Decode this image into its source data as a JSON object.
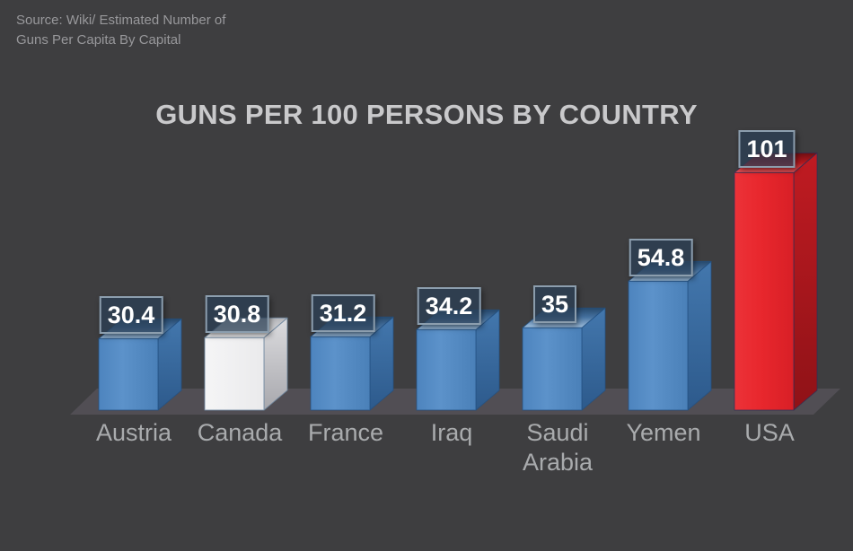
{
  "source_note": "Source: Wiki/ Estimated Number of\nGuns Per Capita By Capital",
  "chart_data": {
    "type": "bar",
    "projection": "3d",
    "title": "GUNS PER 100 PERSONS BY COUNTRY",
    "xlabel": "",
    "ylabel": "",
    "categories": [
      "Austria",
      "Canada",
      "France",
      "Iraq",
      "Saudi Arabia",
      "Yemen",
      "USA"
    ],
    "values": [
      30.4,
      30.8,
      31.2,
      34.2,
      35,
      54.8,
      101
    ],
    "value_labels": [
      "30.4",
      "30.8",
      "31.2",
      "34.2",
      "35",
      "54.8",
      "101"
    ],
    "bar_palette": [
      "blue",
      "white",
      "blue",
      "blue",
      "blue",
      "blue",
      "red"
    ],
    "bar_colors": [
      "#5189c2",
      "#f1f1f2",
      "#5189c2",
      "#5189c2",
      "#5189c2",
      "#5189c2",
      "#e8282e"
    ],
    "ylim": [
      0,
      101
    ],
    "axes_visible": false,
    "grid": false,
    "legend": false
  },
  "colors": {
    "background": "#3e3e40",
    "floor": "#514e54",
    "accent_blue": "#5189c2",
    "highlight_white": "#f1f1f2",
    "highlight_red": "#e8282e",
    "value_box_fill": "#293e54",
    "value_box_border": "#8c9eae",
    "value_text": "#ffffff",
    "title_text": "#c9c9cb",
    "category_text": "#a9abad",
    "source_text": "#98989b"
  }
}
